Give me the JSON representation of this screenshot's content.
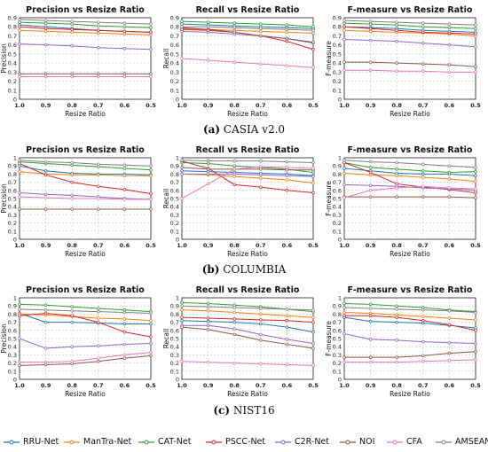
{
  "colors": {
    "RRU-Net": "#1f77b4",
    "ManTra-Net": "#ff7f0e",
    "CAT-Net": "#2ca02c",
    "PSCC-Net": "#d62728",
    "C2R-Net": "#9467bd",
    "NOI": "#8c564b",
    "CFA": "#e377c2",
    "AMSEANet": "#7f7f7f"
  },
  "legend": [
    "RRU-Net",
    "ManTra-Net",
    "CAT-Net",
    "PSCC-Net",
    "C2R-Net",
    "NOI",
    "CFA",
    "AMSEANet"
  ],
  "captions": [
    {
      "letter": "(a)",
      "text": "CASIA v2.0"
    },
    {
      "letter": "(b)",
      "text": "COLUMBIA"
    },
    {
      "letter": "(c)",
      "text": "NIST16"
    }
  ],
  "chart_data": [
    {
      "type": "line",
      "title": "Precision vs Resize Ratio",
      "xlabel": "Resize Ratio",
      "ylabel": "Precision",
      "x": [
        1.0,
        0.9,
        0.8,
        0.7,
        0.6,
        0.5
      ],
      "xticks": [
        "1.0",
        "0.9",
        "0.8",
        "0.7",
        "0.6",
        "0.5"
      ],
      "ylim": [
        0,
        0.9
      ],
      "yticks": [
        "0",
        "0.1",
        "0.2",
        "0.3",
        "0.4",
        "0.5",
        "0.6",
        "0.7",
        "0.8",
        "0.9"
      ],
      "grid": true,
      "series": [
        {
          "name": "RRU-Net",
          "values": [
            0.82,
            0.8,
            0.78,
            0.76,
            0.75,
            0.74
          ]
        },
        {
          "name": "ManTra-Net",
          "values": [
            0.76,
            0.75,
            0.74,
            0.73,
            0.72,
            0.71
          ]
        },
        {
          "name": "CAT-Net",
          "values": [
            0.85,
            0.84,
            0.83,
            0.81,
            0.8,
            0.79
          ]
        },
        {
          "name": "PSCC-Net",
          "values": [
            0.8,
            0.78,
            0.77,
            0.76,
            0.75,
            0.74
          ]
        },
        {
          "name": "C2R-Net",
          "values": [
            0.61,
            0.6,
            0.59,
            0.57,
            0.56,
            0.55
          ]
        },
        {
          "name": "NOI",
          "values": [
            0.28,
            0.28,
            0.28,
            0.28,
            0.28,
            0.28
          ]
        },
        {
          "name": "CFA",
          "values": [
            0.25,
            0.25,
            0.25,
            0.25,
            0.25,
            0.25
          ]
        },
        {
          "name": "AMSEANet",
          "values": [
            0.88,
            0.87,
            0.86,
            0.85,
            0.84,
            0.83
          ]
        }
      ]
    },
    {
      "type": "line",
      "title": "Recall vs Resize Ratio",
      "xlabel": "Resize Ratio",
      "ylabel": "Recall",
      "x": [
        1.0,
        0.9,
        0.8,
        0.7,
        0.6,
        0.5
      ],
      "xticks": [
        "1.0",
        "0.9",
        "0.8",
        "0.7",
        "0.6",
        "0.5"
      ],
      "ylim": [
        0,
        0.9
      ],
      "yticks": [
        "0",
        "0.1",
        "0.2",
        "0.3",
        "0.4",
        "0.5",
        "0.6",
        "0.7",
        "0.8",
        "0.9"
      ],
      "grid": true,
      "series": [
        {
          "name": "RRU-Net",
          "values": [
            0.83,
            0.82,
            0.81,
            0.8,
            0.79,
            0.78
          ]
        },
        {
          "name": "ManTra-Net",
          "values": [
            0.78,
            0.77,
            0.76,
            0.75,
            0.74,
            0.73
          ]
        },
        {
          "name": "CAT-Net",
          "values": [
            0.86,
            0.85,
            0.84,
            0.83,
            0.82,
            0.8
          ]
        },
        {
          "name": "PSCC-Net",
          "values": [
            0.79,
            0.77,
            0.74,
            0.7,
            0.64,
            0.55
          ]
        },
        {
          "name": "C2R-Net",
          "values": [
            0.75,
            0.74,
            0.72,
            0.7,
            0.67,
            0.62
          ]
        },
        {
          "name": "NOI",
          "values": [
            0.77,
            0.76,
            0.74,
            0.7,
            0.67,
            0.63
          ]
        },
        {
          "name": "CFA",
          "values": [
            0.45,
            0.43,
            0.41,
            0.39,
            0.37,
            0.35
          ]
        },
        {
          "name": "AMSEANet",
          "values": [
            0.8,
            0.8,
            0.79,
            0.78,
            0.77,
            0.76
          ]
        }
      ]
    },
    {
      "type": "line",
      "title": "F-measure vs Resize Ratio",
      "xlabel": "Resize Ratio",
      "ylabel": "F-measure",
      "x": [
        1.0,
        0.9,
        0.8,
        0.7,
        0.6,
        0.5
      ],
      "xticks": [
        "1.0",
        "0.9",
        "0.8",
        "0.7",
        "0.6",
        "0.5"
      ],
      "ylim": [
        0,
        0.9
      ],
      "yticks": [
        "0",
        "0.1",
        "0.2",
        "0.3",
        "0.4",
        "0.5",
        "0.6",
        "0.7",
        "0.8",
        "0.9"
      ],
      "grid": true,
      "series": [
        {
          "name": "RRU-Net",
          "values": [
            0.8,
            0.79,
            0.78,
            0.76,
            0.75,
            0.74
          ]
        },
        {
          "name": "ManTra-Net",
          "values": [
            0.76,
            0.75,
            0.74,
            0.73,
            0.72,
            0.7
          ]
        },
        {
          "name": "CAT-Net",
          "values": [
            0.84,
            0.83,
            0.82,
            0.8,
            0.79,
            0.78
          ]
        },
        {
          "name": "PSCC-Net",
          "values": [
            0.8,
            0.78,
            0.76,
            0.74,
            0.73,
            0.72
          ]
        },
        {
          "name": "C2R-Net",
          "values": [
            0.66,
            0.65,
            0.64,
            0.62,
            0.6,
            0.58
          ]
        },
        {
          "name": "NOI",
          "values": [
            0.41,
            0.41,
            0.4,
            0.39,
            0.38,
            0.36
          ]
        },
        {
          "name": "CFA",
          "values": [
            0.32,
            0.32,
            0.31,
            0.31,
            0.3,
            0.3
          ]
        },
        {
          "name": "AMSEANet",
          "values": [
            0.87,
            0.86,
            0.85,
            0.84,
            0.83,
            0.82
          ]
        }
      ]
    },
    {
      "type": "line",
      "title": "Precision vs Resize Ratio",
      "xlabel": "Resize Ratio",
      "ylabel": "Precision",
      "x": [
        1.0,
        0.9,
        0.8,
        0.7,
        0.6,
        0.5
      ],
      "xticks": [
        "1.0",
        "0.9",
        "0.8",
        "0.7",
        "0.6",
        "0.5"
      ],
      "ylim": [
        0,
        1.0
      ],
      "yticks": [
        "0",
        "0.1",
        "0.2",
        "0.3",
        "0.4",
        "0.5",
        "0.6",
        "0.7",
        "0.8",
        "0.9",
        "1"
      ],
      "grid": true,
      "series": [
        {
          "name": "RRU-Net",
          "values": [
            0.9,
            0.84,
            0.81,
            0.8,
            0.8,
            0.79
          ]
        },
        {
          "name": "ManTra-Net",
          "values": [
            0.83,
            0.8,
            0.79,
            0.79,
            0.78,
            0.78
          ]
        },
        {
          "name": "CAT-Net",
          "values": [
            0.95,
            0.93,
            0.91,
            0.89,
            0.87,
            0.85
          ]
        },
        {
          "name": "PSCC-Net",
          "values": [
            0.93,
            0.79,
            0.7,
            0.65,
            0.61,
            0.56
          ]
        },
        {
          "name": "C2R-Net",
          "values": [
            0.57,
            0.55,
            0.54,
            0.52,
            0.5,
            0.49
          ]
        },
        {
          "name": "NOI",
          "values": [
            0.37,
            0.37,
            0.37,
            0.37,
            0.37,
            0.37
          ]
        },
        {
          "name": "CFA",
          "values": [
            0.52,
            0.51,
            0.5,
            0.5,
            0.49,
            0.49
          ]
        },
        {
          "name": "AMSEANet",
          "values": [
            0.97,
            0.95,
            0.94,
            0.92,
            0.91,
            0.9
          ]
        }
      ]
    },
    {
      "type": "line",
      "title": "Recall vs Resize Ratio",
      "xlabel": "Resize Ratio",
      "ylabel": "Recall",
      "x": [
        1.0,
        0.9,
        0.8,
        0.7,
        0.6,
        0.5
      ],
      "xticks": [
        "1.0",
        "0.9",
        "0.8",
        "0.7",
        "0.6",
        "0.5"
      ],
      "ylim": [
        0,
        1.0
      ],
      "yticks": [
        "0",
        "0.1",
        "0.2",
        "0.3",
        "0.4",
        "0.5",
        "0.6",
        "0.7",
        "0.8",
        "0.9",
        "1"
      ],
      "grid": true,
      "series": [
        {
          "name": "RRU-Net",
          "values": [
            0.84,
            0.83,
            0.82,
            0.81,
            0.8,
            0.78
          ]
        },
        {
          "name": "ManTra-Net",
          "values": [
            0.8,
            0.79,
            0.77,
            0.75,
            0.73,
            0.69
          ]
        },
        {
          "name": "CAT-Net",
          "values": [
            0.94,
            0.93,
            0.9,
            0.88,
            0.86,
            0.82
          ]
        },
        {
          "name": "PSCC-Net",
          "values": [
            0.96,
            0.87,
            0.67,
            0.64,
            0.6,
            0.57
          ]
        },
        {
          "name": "C2R-Net",
          "values": [
            0.8,
            0.8,
            0.8,
            0.79,
            0.78,
            0.77
          ]
        },
        {
          "name": "NOI",
          "values": [
            0.88,
            0.86,
            0.86,
            0.86,
            0.85,
            0.85
          ]
        },
        {
          "name": "CFA",
          "values": [
            0.5,
            0.68,
            0.86,
            0.89,
            0.88,
            0.87
          ]
        },
        {
          "name": "AMSEANet",
          "values": [
            0.97,
            0.96,
            0.96,
            0.96,
            0.95,
            0.94
          ]
        }
      ]
    },
    {
      "type": "line",
      "title": "F-measure vs Resize Ratio",
      "xlabel": "Resize Ratio",
      "ylabel": "F-measure",
      "x": [
        1.0,
        0.9,
        0.8,
        0.7,
        0.6,
        0.5
      ],
      "xticks": [
        "1.0",
        "0.9",
        "0.8",
        "0.7",
        "0.6",
        "0.5"
      ],
      "ylim": [
        0,
        1.0
      ],
      "yticks": [
        "0",
        "0.1",
        "0.2",
        "0.3",
        "0.4",
        "0.5",
        "0.6",
        "0.7",
        "0.8",
        "0.9",
        "1"
      ],
      "grid": true,
      "series": [
        {
          "name": "RRU-Net",
          "values": [
            0.87,
            0.84,
            0.81,
            0.8,
            0.8,
            0.78
          ]
        },
        {
          "name": "ManTra-Net",
          "values": [
            0.81,
            0.79,
            0.78,
            0.76,
            0.74,
            0.71
          ]
        },
        {
          "name": "CAT-Net",
          "values": [
            0.94,
            0.88,
            0.86,
            0.84,
            0.82,
            0.83
          ]
        },
        {
          "name": "PSCC-Net",
          "values": [
            0.94,
            0.82,
            0.68,
            0.64,
            0.61,
            0.57
          ]
        },
        {
          "name": "C2R-Net",
          "values": [
            0.67,
            0.66,
            0.65,
            0.63,
            0.62,
            0.6
          ]
        },
        {
          "name": "NOI",
          "values": [
            0.52,
            0.52,
            0.52,
            0.52,
            0.52,
            0.51
          ]
        },
        {
          "name": "CFA",
          "values": [
            0.51,
            0.6,
            0.63,
            0.65,
            0.63,
            0.62
          ]
        },
        {
          "name": "AMSEANet",
          "values": [
            0.97,
            0.95,
            0.94,
            0.92,
            0.9,
            0.88
          ]
        }
      ]
    },
    {
      "type": "line",
      "title": "Precision vs Resize Ratio",
      "xlabel": "Resize Ratio",
      "ylabel": "Precision",
      "x": [
        1.0,
        0.9,
        0.8,
        0.7,
        0.6,
        0.5
      ],
      "xticks": [
        "1.0",
        "0.9",
        "0.8",
        "0.7",
        "0.6",
        "0.5"
      ],
      "ylim": [
        0,
        1.0
      ],
      "yticks": [
        "0",
        "0.1",
        "0.2",
        "0.3",
        "0.4",
        "0.5",
        "0.6",
        "0.7",
        "0.8",
        "0.9",
        "1"
      ],
      "grid": true,
      "series": [
        {
          "name": "RRU-Net",
          "values": [
            0.81,
            0.7,
            0.7,
            0.69,
            0.68,
            0.68
          ]
        },
        {
          "name": "ManTra-Net",
          "values": [
            0.8,
            0.79,
            0.77,
            0.75,
            0.74,
            0.72
          ]
        },
        {
          "name": "CAT-Net",
          "values": [
            0.92,
            0.91,
            0.89,
            0.87,
            0.85,
            0.83
          ]
        },
        {
          "name": "PSCC-Net",
          "values": [
            0.78,
            0.81,
            0.78,
            0.7,
            0.58,
            0.52
          ]
        },
        {
          "name": "C2R-Net",
          "values": [
            0.5,
            0.38,
            0.4,
            0.41,
            0.43,
            0.44
          ]
        },
        {
          "name": "NOI",
          "values": [
            0.17,
            0.18,
            0.19,
            0.22,
            0.26,
            0.29
          ]
        },
        {
          "name": "CFA",
          "values": [
            0.21,
            0.21,
            0.22,
            0.26,
            0.3,
            0.33
          ]
        },
        {
          "name": "AMSEANet",
          "values": [
            0.86,
            0.85,
            0.84,
            0.83,
            0.82,
            0.81
          ]
        }
      ]
    },
    {
      "type": "line",
      "title": "Recall vs Resize Ratio",
      "xlabel": "Resize Ratio",
      "ylabel": "Recall",
      "x": [
        1.0,
        0.9,
        0.8,
        0.7,
        0.6,
        0.5
      ],
      "xticks": [
        "1.0",
        "0.9",
        "0.8",
        "0.7",
        "0.6",
        "0.5"
      ],
      "ylim": [
        0,
        1.0
      ],
      "yticks": [
        "0",
        "0.1",
        "0.2",
        "0.3",
        "0.4",
        "0.5",
        "0.6",
        "0.7",
        "0.8",
        "0.9",
        "1"
      ],
      "grid": true,
      "series": [
        {
          "name": "RRU-Net",
          "values": [
            0.72,
            0.71,
            0.7,
            0.68,
            0.64,
            0.58
          ]
        },
        {
          "name": "ManTra-Net",
          "values": [
            0.85,
            0.84,
            0.82,
            0.8,
            0.78,
            0.76
          ]
        },
        {
          "name": "CAT-Net",
          "values": [
            0.94,
            0.93,
            0.91,
            0.89,
            0.86,
            0.83
          ]
        },
        {
          "name": "PSCC-Net",
          "values": [
            0.76,
            0.75,
            0.74,
            0.73,
            0.72,
            0.7
          ]
        },
        {
          "name": "C2R-Net",
          "values": [
            0.66,
            0.66,
            0.62,
            0.55,
            0.49,
            0.44
          ]
        },
        {
          "name": "NOI",
          "values": [
            0.64,
            0.61,
            0.55,
            0.48,
            0.43,
            0.38
          ]
        },
        {
          "name": "CFA",
          "values": [
            0.22,
            0.21,
            0.2,
            0.19,
            0.18,
            0.17
          ]
        },
        {
          "name": "AMSEANet",
          "values": [
            0.9,
            0.89,
            0.88,
            0.87,
            0.86,
            0.85
          ]
        }
      ]
    },
    {
      "type": "line",
      "title": "F-measure vs Resize Ratio",
      "xlabel": "Resize Ratio",
      "ylabel": "F-measure",
      "x": [
        1.0,
        0.9,
        0.8,
        0.7,
        0.6,
        0.5
      ],
      "xticks": [
        "1.0",
        "0.9",
        "0.8",
        "0.7",
        "0.6",
        "0.5"
      ],
      "ylim": [
        0,
        1.0
      ],
      "yticks": [
        "0",
        "0.1",
        "0.2",
        "0.3",
        "0.4",
        "0.5",
        "0.6",
        "0.7",
        "0.8",
        "0.9",
        "1"
      ],
      "grid": true,
      "series": [
        {
          "name": "RRU-Net",
          "values": [
            0.76,
            0.71,
            0.7,
            0.69,
            0.66,
            0.63
          ]
        },
        {
          "name": "ManTra-Net",
          "values": [
            0.82,
            0.81,
            0.79,
            0.77,
            0.75,
            0.73
          ]
        },
        {
          "name": "CAT-Net",
          "values": [
            0.93,
            0.92,
            0.9,
            0.88,
            0.85,
            0.83
          ]
        },
        {
          "name": "PSCC-Net",
          "values": [
            0.78,
            0.78,
            0.76,
            0.72,
            0.67,
            0.6
          ]
        },
        {
          "name": "C2R-Net",
          "values": [
            0.56,
            0.49,
            0.48,
            0.46,
            0.45,
            0.44
          ]
        },
        {
          "name": "NOI",
          "values": [
            0.27,
            0.27,
            0.27,
            0.29,
            0.32,
            0.34
          ]
        },
        {
          "name": "CFA",
          "values": [
            0.21,
            0.21,
            0.21,
            0.22,
            0.23,
            0.24
          ]
        },
        {
          "name": "AMSEANet",
          "values": [
            0.88,
            0.87,
            0.86,
            0.85,
            0.84,
            0.82
          ]
        }
      ]
    }
  ]
}
